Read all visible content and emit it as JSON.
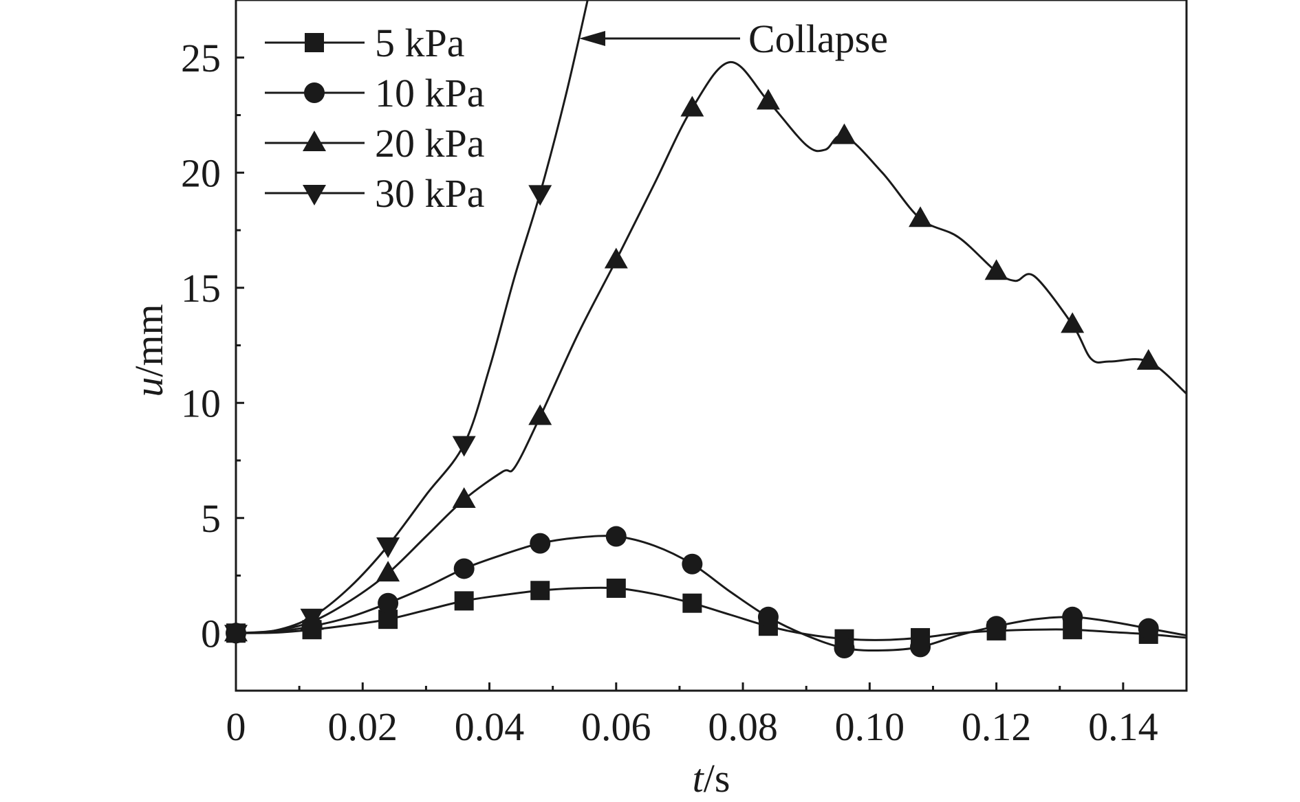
{
  "chart_data": {
    "type": "line",
    "title": "",
    "xlabel": "t/s",
    "xlabel_var": "t",
    "xlabel_unit": "/s",
    "ylabel": "u/mm",
    "ylabel_var": "u",
    "ylabel_unit": "/mm",
    "xlim": [
      0,
      0.15
    ],
    "ylim": [
      -2.5,
      27.5
    ],
    "xticks": [
      0,
      0.02,
      0.04,
      0.06,
      0.08,
      0.1,
      0.12,
      0.14
    ],
    "xtick_labels": [
      "0",
      "0.02",
      "0.04",
      "0.06",
      "0.08",
      "0.10",
      "0.12",
      "0.14"
    ],
    "yticks": [
      0,
      5,
      10,
      15,
      20,
      25
    ],
    "ytick_labels": [
      "0",
      "5",
      "10",
      "15",
      "20",
      "25"
    ],
    "grid": false,
    "legend_position": "top-left",
    "annotation": {
      "text": "Collapse",
      "points_to_series": "30 kPa",
      "arrow_x": 0.0543,
      "arrow_y": 26.0
    },
    "series": [
      {
        "name": "5 kPa",
        "marker": "square",
        "x": [
          0,
          0.006,
          0.012,
          0.018,
          0.024,
          0.03,
          0.036,
          0.042,
          0.048,
          0.054,
          0.06,
          0.066,
          0.072,
          0.078,
          0.084,
          0.09,
          0.096,
          0.102,
          0.108,
          0.114,
          0.12,
          0.126,
          0.132,
          0.138,
          0.144,
          0.15
        ],
        "y": [
          0,
          0.02,
          0.15,
          0.35,
          0.6,
          1.0,
          1.4,
          1.65,
          1.85,
          1.95,
          1.95,
          1.7,
          1.3,
          0.8,
          0.3,
          -0.05,
          -0.25,
          -0.3,
          -0.2,
          0.0,
          0.1,
          0.15,
          0.15,
          0.05,
          -0.05,
          -0.2
        ],
        "marker_x": [
          0,
          0.012,
          0.024,
          0.036,
          0.048,
          0.06,
          0.072,
          0.084,
          0.096,
          0.108,
          0.12,
          0.132,
          0.144
        ],
        "marker_y": [
          0,
          0.15,
          0.6,
          1.4,
          1.85,
          1.95,
          1.3,
          0.3,
          -0.25,
          -0.2,
          0.1,
          0.15,
          -0.05
        ]
      },
      {
        "name": "10 kPa",
        "marker": "circle",
        "x": [
          0,
          0.006,
          0.012,
          0.018,
          0.024,
          0.03,
          0.036,
          0.042,
          0.048,
          0.054,
          0.06,
          0.066,
          0.072,
          0.078,
          0.084,
          0.09,
          0.096,
          0.102,
          0.108,
          0.114,
          0.12,
          0.126,
          0.132,
          0.138,
          0.144,
          0.15
        ],
        "y": [
          0,
          0.05,
          0.3,
          0.7,
          1.3,
          2.0,
          2.8,
          3.4,
          3.9,
          4.15,
          4.2,
          3.8,
          3.0,
          1.8,
          0.7,
          -0.1,
          -0.65,
          -0.75,
          -0.6,
          -0.1,
          0.3,
          0.6,
          0.7,
          0.5,
          0.2,
          -0.1
        ],
        "marker_x": [
          0,
          0.012,
          0.024,
          0.036,
          0.048,
          0.06,
          0.072,
          0.084,
          0.096,
          0.108,
          0.12,
          0.132,
          0.144
        ],
        "marker_y": [
          0,
          0.3,
          1.3,
          2.8,
          3.9,
          4.2,
          3.0,
          0.7,
          -0.65,
          -0.6,
          0.3,
          0.7,
          0.2
        ]
      },
      {
        "name": "20 kPa",
        "marker": "triangle-up",
        "x": [
          0,
          0.006,
          0.012,
          0.018,
          0.024,
          0.03,
          0.036,
          0.042,
          0.044,
          0.048,
          0.054,
          0.06,
          0.066,
          0.072,
          0.078,
          0.084,
          0.09,
          0.093,
          0.096,
          0.102,
          0.108,
          0.114,
          0.12,
          0.123,
          0.126,
          0.132,
          0.135,
          0.138,
          0.144,
          0.15
        ],
        "y": [
          0,
          0.1,
          0.5,
          1.4,
          2.6,
          4.2,
          5.8,
          7.0,
          7.2,
          9.4,
          13.0,
          16.2,
          19.5,
          22.8,
          24.8,
          23.1,
          21.2,
          21.0,
          21.6,
          20.0,
          18.0,
          17.2,
          15.7,
          15.3,
          15.5,
          13.4,
          11.9,
          11.8,
          11.8,
          10.4
        ],
        "marker_x": [
          0,
          0.012,
          0.024,
          0.036,
          0.048,
          0.06,
          0.072,
          0.084,
          0.096,
          0.108,
          0.12,
          0.132,
          0.144
        ],
        "marker_y": [
          0,
          0.5,
          2.6,
          5.8,
          9.4,
          16.2,
          22.8,
          23.1,
          21.6,
          18.0,
          15.7,
          13.4,
          11.8
        ]
      },
      {
        "name": "30 kPa",
        "marker": "triangle-down",
        "x": [
          0,
          0.006,
          0.012,
          0.018,
          0.024,
          0.03,
          0.036,
          0.04,
          0.044,
          0.048,
          0.052,
          0.0555
        ],
        "y": [
          0,
          0.1,
          0.7,
          2.0,
          3.8,
          6.0,
          8.2,
          11.5,
          15.5,
          19.1,
          23.3,
          27.5
        ],
        "marker_x": [
          0,
          0.012,
          0.024,
          0.036,
          0.048
        ],
        "marker_y": [
          0,
          0.7,
          3.8,
          8.2,
          19.1
        ]
      }
    ]
  }
}
